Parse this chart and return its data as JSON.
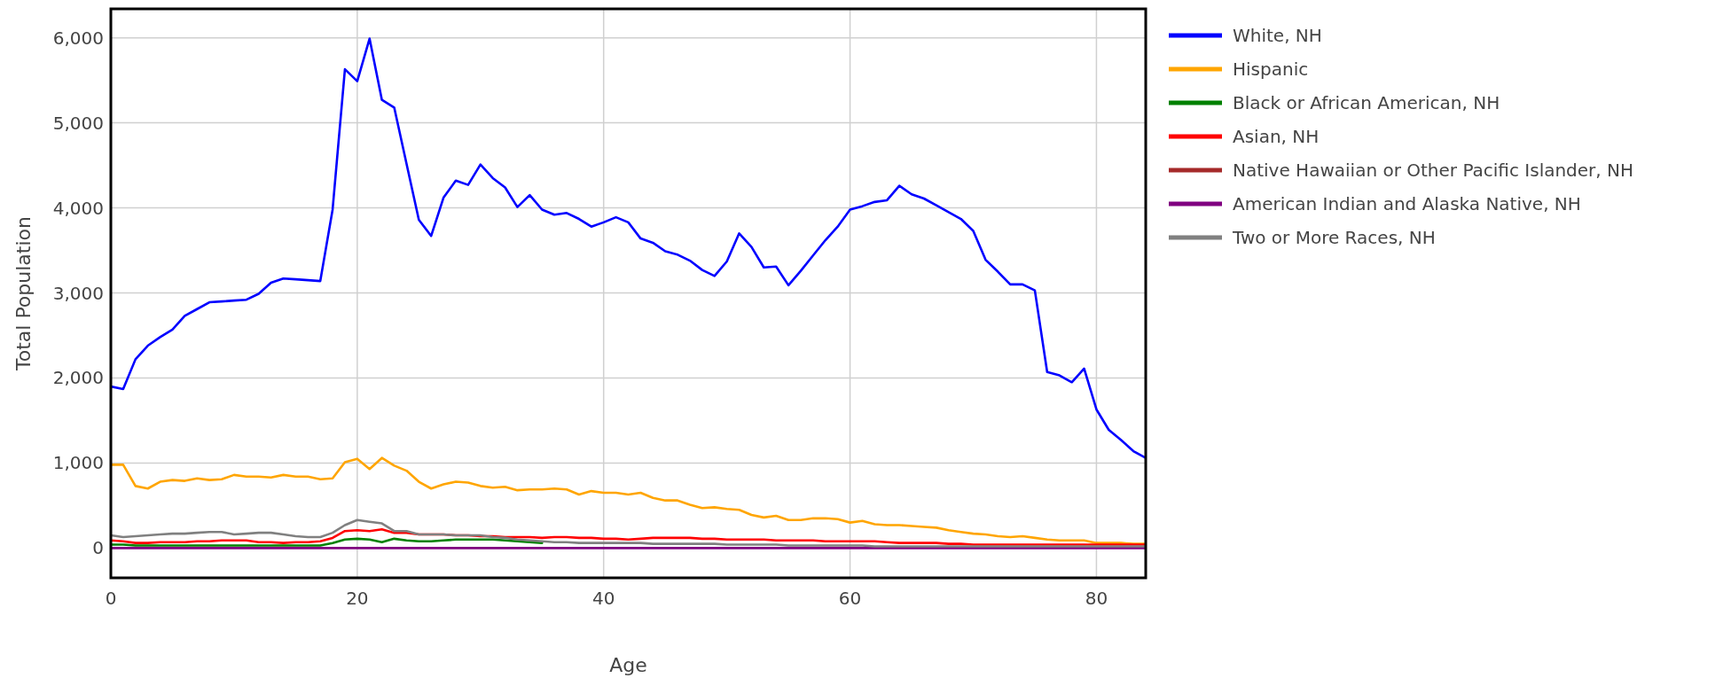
{
  "chart_data": {
    "type": "line",
    "xlabel": "Age",
    "ylabel": "Total Population",
    "x": [
      0,
      1,
      2,
      3,
      4,
      5,
      6,
      7,
      8,
      9,
      10,
      11,
      12,
      13,
      14,
      15,
      16,
      17,
      18,
      19,
      20,
      21,
      22,
      23,
      24,
      25,
      26,
      27,
      28,
      29,
      30,
      31,
      32,
      33,
      34,
      35,
      36,
      37,
      38,
      39,
      40,
      41,
      42,
      43,
      44,
      45,
      46,
      47,
      48,
      49,
      50,
      51,
      52,
      53,
      54,
      55,
      56,
      57,
      58,
      59,
      60,
      61,
      62,
      63,
      64,
      65,
      66,
      67,
      68,
      69,
      70,
      71,
      72,
      73,
      74,
      75,
      76,
      77,
      78,
      79,
      80,
      81,
      82,
      83,
      84
    ],
    "xlim": [
      0,
      84
    ],
    "xticks": [
      0,
      20,
      40,
      60,
      80
    ],
    "ylim": [
      -350,
      6340
    ],
    "yticks": [
      0,
      {
        "value": 1000,
        "label": "1,000"
      },
      {
        "value": 2000,
        "label": "2,000"
      },
      {
        "value": 3000,
        "label": "3,000"
      },
      {
        "value": 4000,
        "label": "4,000"
      },
      {
        "value": 5000,
        "label": "5,000"
      },
      {
        "value": 6000,
        "label": "6,000"
      }
    ],
    "grid": true,
    "legend": "top right",
    "series": [
      {
        "name": "White, NH",
        "color": "#0000ff",
        "values": [
          1900,
          1870,
          2220,
          2380,
          2480,
          2570,
          2730,
          2810,
          2890,
          2900,
          2910,
          2920,
          2990,
          3120,
          3170,
          3160,
          3150,
          3140,
          3980,
          5630,
          5490,
          5990,
          5270,
          5180,
          4520,
          3860,
          3670,
          4120,
          4320,
          4270,
          4510,
          4350,
          4240,
          4010,
          4150,
          3980,
          3920,
          3940,
          3870,
          3780,
          3830,
          3890,
          3830,
          3640,
          3590,
          3490,
          3450,
          3380,
          3270,
          3200,
          3370,
          3700,
          3540,
          3300,
          3310,
          3090,
          3260,
          3440,
          3620,
          3780,
          3980,
          4020,
          4070,
          4090,
          4260,
          4160,
          4110,
          4030,
          3950,
          3870,
          3730,
          3390,
          3250,
          3100,
          3100,
          3030,
          2070,
          2030,
          1950,
          2110,
          1630,
          1390,
          1270,
          1140,
          1060
        ]
      },
      {
        "name": "Hispanic",
        "color": "#ffa500",
        "values": [
          980,
          980,
          730,
          700,
          780,
          800,
          790,
          820,
          800,
          810,
          860,
          840,
          840,
          830,
          860,
          840,
          840,
          810,
          820,
          1010,
          1050,
          930,
          1060,
          970,
          910,
          780,
          700,
          750,
          780,
          770,
          730,
          710,
          720,
          680,
          690,
          690,
          700,
          690,
          630,
          670,
          650,
          650,
          630,
          650,
          590,
          560,
          560,
          510,
          470,
          480,
          460,
          450,
          390,
          360,
          380,
          330,
          330,
          350,
          350,
          340,
          300,
          320,
          280,
          270,
          270,
          260,
          250,
          240,
          210,
          190,
          170,
          160,
          140,
          130,
          140,
          120,
          100,
          90,
          90,
          90,
          60,
          60,
          60,
          50,
          50
        ]
      },
      {
        "name": "Black or African American, NH",
        "color": "#008000",
        "values": [
          40,
          40,
          30,
          30,
          30,
          30,
          30,
          30,
          30,
          30,
          30,
          30,
          30,
          30,
          30,
          30,
          30,
          30,
          60,
          100,
          110,
          100,
          70,
          110,
          90,
          80,
          80,
          90,
          100,
          100,
          100,
          100,
          90,
          80,
          70,
          60,
          null,
          null,
          null,
          null,
          null,
          null,
          null,
          null,
          null,
          null,
          null,
          null,
          null,
          null,
          null,
          null,
          null,
          null,
          null,
          null,
          null,
          null,
          null,
          null,
          null,
          null,
          null,
          null,
          null,
          null,
          null,
          null,
          null,
          null,
          null,
          null,
          null,
          null,
          null,
          null,
          null,
          null,
          null,
          null,
          null,
          null,
          null,
          null,
          null
        ]
      },
      {
        "name": "Asian, NH",
        "color": "#ff0000",
        "values": [
          90,
          80,
          60,
          60,
          70,
          70,
          70,
          80,
          80,
          90,
          90,
          90,
          70,
          70,
          60,
          70,
          70,
          80,
          120,
          200,
          210,
          200,
          220,
          180,
          180,
          160,
          160,
          160,
          150,
          150,
          140,
          140,
          130,
          130,
          130,
          120,
          130,
          130,
          120,
          120,
          110,
          110,
          100,
          110,
          120,
          120,
          120,
          120,
          110,
          110,
          100,
          100,
          100,
          100,
          90,
          90,
          90,
          90,
          80,
          80,
          80,
          80,
          80,
          70,
          60,
          60,
          60,
          60,
          50,
          50,
          40,
          40,
          40,
          40,
          40,
          40,
          40,
          40,
          40,
          40,
          40,
          40,
          40,
          40,
          40
        ]
      },
      {
        "name": "Native Hawaiian or Other Pacific Islander, NH",
        "color": "#a52a2a",
        "values": [
          null,
          null,
          null,
          null,
          null,
          null,
          null,
          null,
          null,
          null,
          null,
          null,
          null,
          null,
          null,
          null,
          null,
          null,
          null,
          null,
          null,
          null,
          null,
          null,
          null,
          null,
          null,
          null,
          null,
          null,
          null,
          null,
          null,
          null,
          null,
          null,
          null,
          null,
          null,
          null,
          null,
          null,
          null,
          null,
          null,
          null,
          null,
          null,
          null,
          null,
          null,
          null,
          null,
          null,
          null,
          null,
          null,
          null,
          null,
          null,
          null,
          null,
          null,
          null,
          null,
          null,
          null,
          null,
          null,
          null,
          null,
          null,
          null,
          null,
          null,
          null,
          null,
          null,
          null,
          null,
          null,
          null,
          null,
          null,
          null
        ]
      },
      {
        "name": "American Indian and Alaska Native, NH",
        "color": "#800080",
        "values": [
          0,
          0,
          0,
          0,
          0,
          0,
          0,
          0,
          0,
          0,
          0,
          0,
          0,
          0,
          0,
          0,
          0,
          0,
          0,
          0,
          0,
          0,
          0,
          0,
          0,
          0,
          0,
          0,
          0,
          0,
          0,
          0,
          0,
          0,
          0,
          0,
          0,
          0,
          0,
          0,
          0,
          0,
          0,
          0,
          0,
          0,
          0,
          0,
          0,
          0,
          0,
          0,
          0,
          0,
          0,
          0,
          0,
          0,
          0,
          0,
          0,
          0,
          0,
          0,
          0,
          0,
          0,
          0,
          0,
          0,
          0,
          0,
          0,
          0,
          0,
          0,
          0,
          0,
          0,
          0,
          0,
          0,
          0,
          0,
          0
        ]
      },
      {
        "name": "Two or More Races, NH",
        "color": "#808080",
        "values": [
          150,
          130,
          140,
          150,
          160,
          170,
          170,
          180,
          190,
          190,
          160,
          170,
          180,
          180,
          160,
          140,
          130,
          130,
          180,
          270,
          330,
          310,
          290,
          200,
          200,
          160,
          160,
          160,
          150,
          150,
          150,
          130,
          120,
          100,
          90,
          80,
          70,
          70,
          60,
          60,
          60,
          60,
          60,
          60,
          50,
          50,
          50,
          50,
          50,
          50,
          40,
          40,
          40,
          40,
          40,
          30,
          30,
          30,
          30,
          30,
          30,
          30,
          20,
          20,
          20,
          20,
          20,
          20,
          20,
          20,
          20,
          20,
          20,
          20,
          20,
          20,
          20,
          20,
          20,
          20,
          20,
          20,
          20,
          20,
          20
        ]
      }
    ]
  }
}
